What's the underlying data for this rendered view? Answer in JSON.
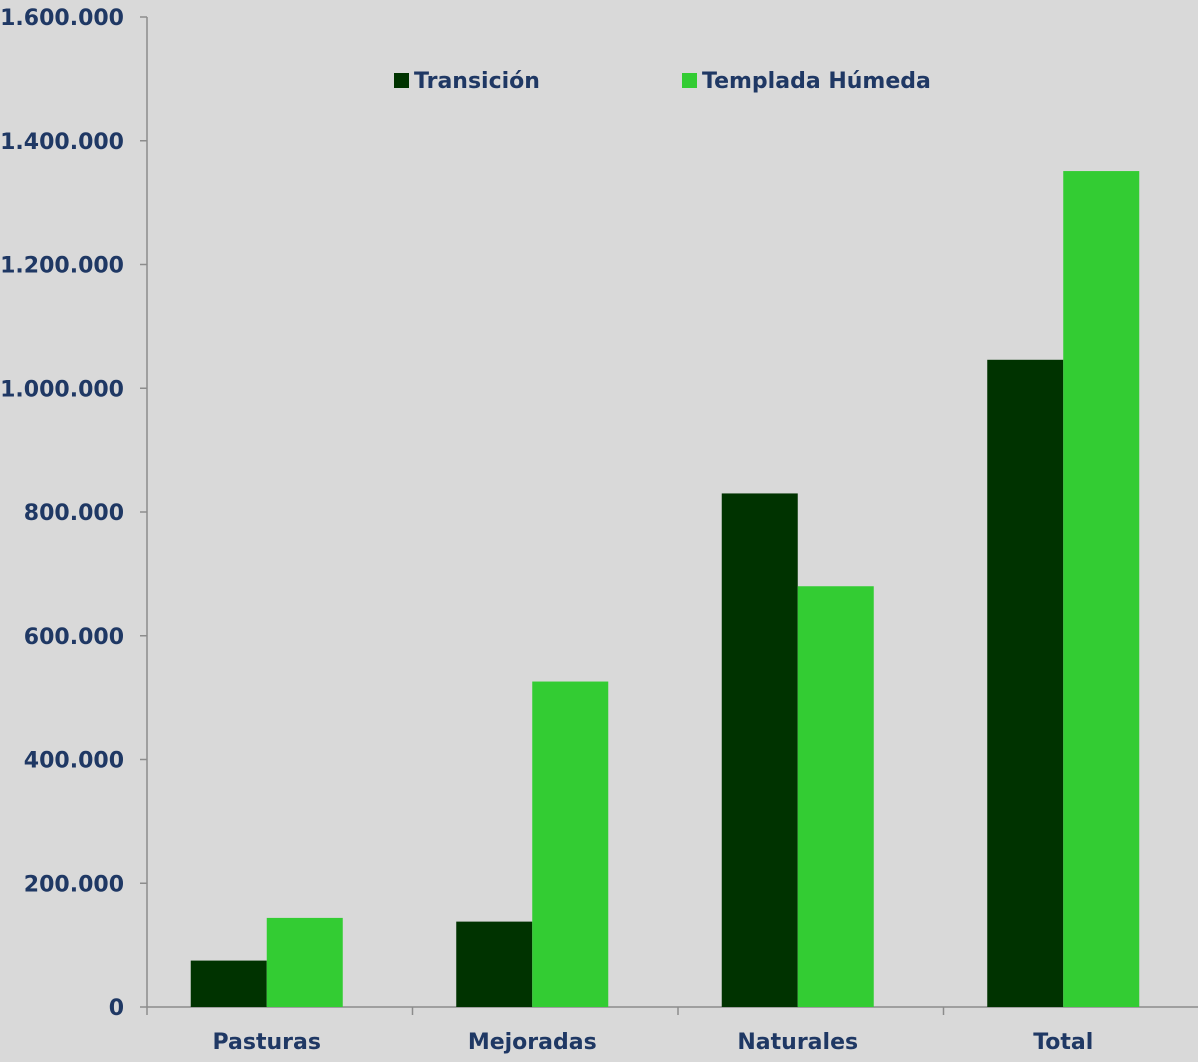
{
  "chart_data": {
    "type": "bar",
    "title": "",
    "xlabel": "",
    "ylabel": "",
    "categories": [
      "Pasturas",
      "Mejoradas",
      "Naturales",
      "Total"
    ],
    "series": [
      {
        "name": "Transición",
        "color": "#003300",
        "values": [
          75000,
          138000,
          830000,
          1046000
        ]
      },
      {
        "name": "Templada Húmeda",
        "color": "#33cc33",
        "values": [
          144000,
          526000,
          680000,
          1351000
        ]
      }
    ],
    "ylim": [
      0,
      1600000
    ],
    "yticks": [
      0,
      200000,
      400000,
      600000,
      800000,
      1000000,
      1200000,
      1400000,
      1600000
    ],
    "ytick_labels": [
      "0",
      "200.000",
      "400.000",
      "600.000",
      "800.000",
      "1.000.000",
      "1.200.000",
      "1.400.000",
      "1.600.000"
    ],
    "grid": false,
    "legend_position": "top-center",
    "text_color": "#1f3864",
    "background": "#d9d9d9"
  }
}
